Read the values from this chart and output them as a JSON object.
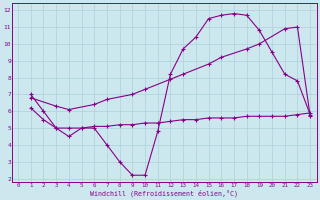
{
  "xlabel": "Windchill (Refroidissement éolien,°C)",
  "background_color": "#cce8ee",
  "grid_color": "#aad0da",
  "line_color": "#880088",
  "xlim": [
    -0.5,
    23.5
  ],
  "ylim": [
    1.8,
    12.4
  ],
  "xticks": [
    0,
    1,
    2,
    3,
    4,
    5,
    6,
    7,
    8,
    9,
    10,
    11,
    12,
    13,
    14,
    15,
    16,
    17,
    18,
    19,
    20,
    21,
    22,
    23
  ],
  "yticks": [
    2,
    3,
    4,
    5,
    6,
    7,
    8,
    9,
    10,
    11,
    12
  ],
  "line1_x": [
    1,
    2,
    3,
    4,
    5,
    6,
    7,
    8,
    9,
    10,
    11,
    12,
    13,
    14,
    15,
    16,
    17,
    18,
    19,
    20,
    21,
    22,
    23
  ],
  "line1_y": [
    7.0,
    6.0,
    5.0,
    4.5,
    5.0,
    5.0,
    4.0,
    3.0,
    2.2,
    2.2,
    4.8,
    8.2,
    9.7,
    10.4,
    11.5,
    11.7,
    11.8,
    11.7,
    10.8,
    9.5,
    8.2,
    7.8,
    5.8
  ],
  "line2_x": [
    1,
    2,
    3,
    4,
    5,
    6,
    7,
    8,
    9,
    10,
    11,
    12,
    13,
    14,
    15,
    16,
    17,
    18,
    19,
    20,
    21,
    22,
    23
  ],
  "line2_y": [
    6.2,
    5.5,
    5.0,
    5.0,
    5.0,
    5.1,
    5.1,
    5.2,
    5.2,
    5.3,
    5.3,
    5.4,
    5.5,
    5.5,
    5.6,
    5.6,
    5.6,
    5.7,
    5.7,
    5.7,
    5.7,
    5.8,
    5.9
  ],
  "line3_x": [
    1,
    3,
    4,
    6,
    7,
    9,
    10,
    12,
    13,
    15,
    16,
    18,
    19,
    21,
    22,
    23
  ],
  "line3_y": [
    6.8,
    6.3,
    6.1,
    6.4,
    6.7,
    7.0,
    7.3,
    7.9,
    8.2,
    8.8,
    9.2,
    9.7,
    10.0,
    10.9,
    11.0,
    5.7
  ]
}
